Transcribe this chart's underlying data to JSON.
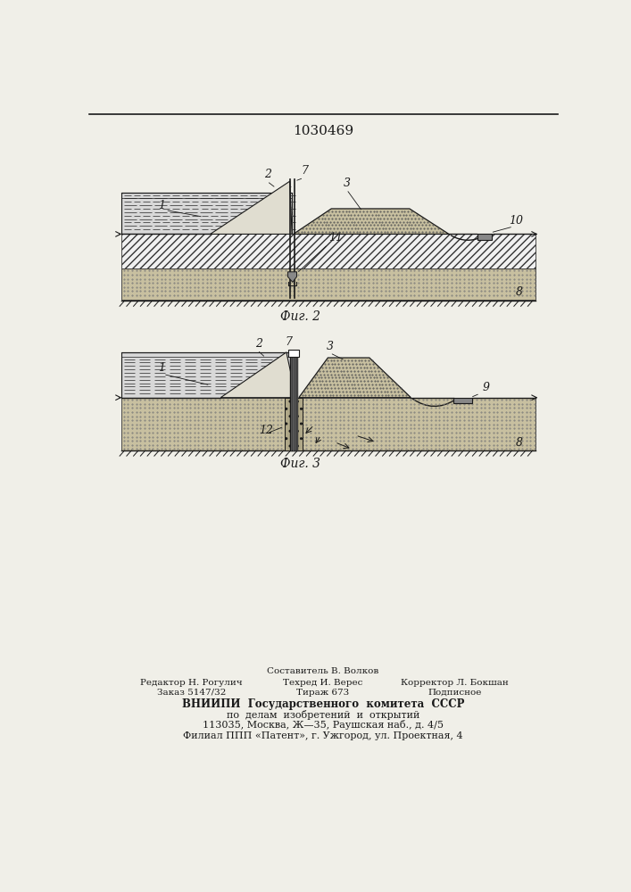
{
  "title": "1030469",
  "fig2_label": "Фиг. 2",
  "fig3_label": "Фиг. 3",
  "footer_col1_line1": "Редактор Н. Рогулич",
  "footer_col1_line2": "Заказ 5147/32",
  "footer_col2_line0": "Составитель В. Волков",
  "footer_col2_line1": "Техред И. Верес",
  "footer_col2_line2": "Тираж 673",
  "footer_col3_line1": "Корректор Л. Бокшан",
  "footer_col3_line2": "Подписное",
  "footer_vniipи1": "ВНИИПИ  Государственного  комитета  СССР",
  "footer_vniipи2": "по  делам  изобретений  и  открытий",
  "footer_addr1": "113035, Москва, Ж—35, Раушская наб., д. 4/5",
  "footer_addr2": "Филиал ППП «Патент», г. Ужгород, ул. Проектная, 4",
  "bg_color": "#f0efe8",
  "line_color": "#1a1a1a",
  "water_color": "#d8d8d8",
  "hatch_fill": "#e8e8e8",
  "sand_color": "#c8c0a0",
  "dark_wall": "#555555"
}
